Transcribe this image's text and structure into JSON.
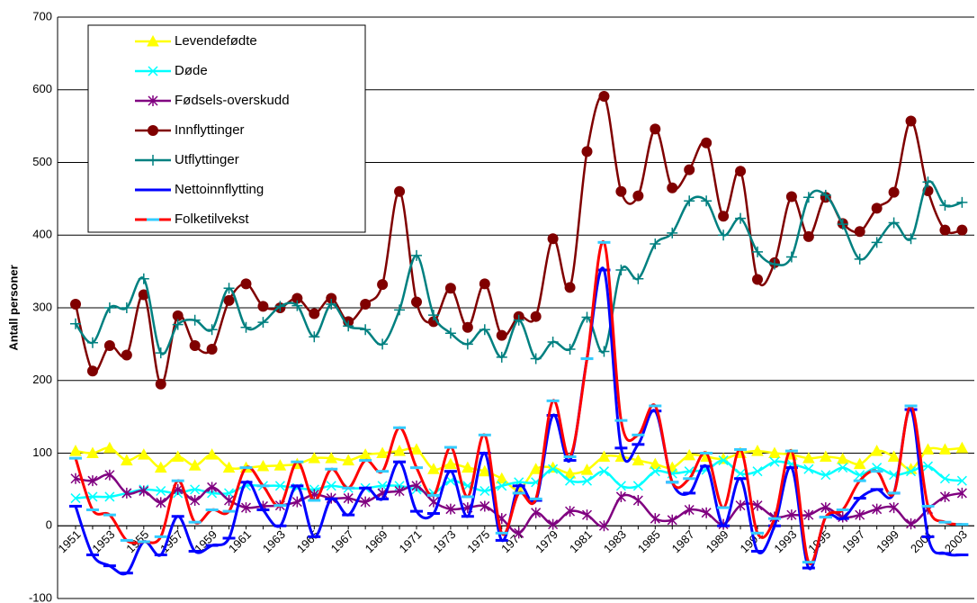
{
  "chart_data": {
    "type": "line",
    "y_label": "Antall personer",
    "categories": [
      "1951",
      null,
      "1953",
      null,
      "1955",
      null,
      "1957",
      null,
      "1959",
      null,
      "1961",
      null,
      "1963",
      null,
      "1965",
      null,
      "1967",
      null,
      "1969",
      null,
      "1971",
      null,
      "1973",
      null,
      "1975",
      null,
      "1977",
      null,
      "1979",
      null,
      "1981",
      null,
      "1983",
      null,
      "1985",
      null,
      "1987",
      null,
      "1989",
      null,
      "1991",
      null,
      "1993",
      null,
      "1995",
      null,
      "1997",
      null,
      "1999",
      null,
      "2001",
      null,
      "2003"
    ],
    "ylim": [
      -100,
      700
    ],
    "yticks": [
      -100,
      0,
      100,
      200,
      300,
      400,
      500,
      600,
      700
    ],
    "grid": true,
    "legend": "upper left",
    "series": [
      {
        "name": "Levendefødte",
        "color": "#ffff00",
        "marker": "triangle",
        "marker_color": "#ffff00",
        "values": [
          103,
          100,
          107,
          90,
          98,
          80,
          95,
          83,
          98,
          80,
          80,
          82,
          83,
          85,
          93,
          93,
          90,
          98,
          100,
          103,
          105,
          78,
          85,
          80,
          75,
          65,
          50,
          78,
          80,
          72,
          77,
          95,
          95,
          90,
          85,
          80,
          97,
          95,
          92,
          100,
          103,
          100,
          98,
          93,
          95,
          92,
          85,
          103,
          95,
          78,
          105,
          105,
          107
        ]
      },
      {
        "name": "Døde",
        "color": "#00ffff",
        "marker": "x",
        "marker_color": "#00ffff",
        "values": [
          38,
          40,
          40,
          45,
          50,
          48,
          45,
          50,
          45,
          45,
          55,
          55,
          55,
          52,
          50,
          55,
          52,
          52,
          55,
          55,
          50,
          45,
          62,
          55,
          48,
          55,
          60,
          60,
          78,
          62,
          62,
          75,
          55,
          55,
          75,
          72,
          75,
          77,
          90,
          72,
          75,
          88,
          85,
          78,
          70,
          80,
          70,
          80,
          70,
          75,
          82,
          65,
          62
        ]
      },
      {
        "name": "Fødsels-overskudd",
        "color": "#800080",
        "marker": "star",
        "marker_color": "#800080",
        "values": [
          65,
          62,
          70,
          45,
          48,
          32,
          50,
          35,
          53,
          35,
          25,
          27,
          28,
          33,
          43,
          38,
          38,
          33,
          45,
          48,
          55,
          33,
          23,
          25,
          27,
          10,
          -10,
          18,
          2,
          20,
          15,
          0,
          40,
          35,
          10,
          8,
          22,
          18,
          2,
          28,
          28,
          12,
          15,
          15,
          25,
          12,
          15,
          23,
          25,
          3,
          23,
          40,
          45
        ]
      },
      {
        "name": "Innflyttinger",
        "color": "#800000",
        "marker": "circle",
        "marker_color": "#800000",
        "values": [
          305,
          213,
          248,
          235,
          318,
          195,
          289,
          248,
          243,
          310,
          333,
          302,
          300,
          313,
          292,
          313,
          281,
          305,
          332,
          460,
          308,
          281,
          327,
          273,
          333,
          262,
          288,
          288,
          395,
          328,
          515,
          591,
          460,
          454,
          546,
          465,
          490,
          527,
          426,
          488,
          339,
          362,
          453,
          398,
          452,
          416,
          405,
          437,
          459,
          557,
          461,
          407,
          407
        ]
      },
      {
        "name": "Utflyttinger",
        "color": "#008080",
        "marker": "plus",
        "marker_color": "#008080",
        "values": [
          278,
          252,
          300,
          300,
          340,
          238,
          277,
          283,
          270,
          327,
          273,
          280,
          302,
          303,
          260,
          305,
          275,
          270,
          250,
          297,
          372,
          290,
          265,
          250,
          270,
          232,
          283,
          230,
          253,
          243,
          287,
          240,
          352,
          340,
          388,
          403,
          447,
          447,
          400,
          423,
          377,
          360,
          370,
          452,
          455,
          415,
          367,
          390,
          417,
          395,
          473,
          441,
          445
        ]
      },
      {
        "name": "Nettoinnflytting",
        "color": "#0000ff",
        "marker": "dash",
        "marker_color": "#0000ff",
        "values": [
          27,
          -40,
          -55,
          -65,
          -22,
          -40,
          13,
          -35,
          -27,
          -17,
          60,
          22,
          0,
          55,
          -15,
          37,
          15,
          52,
          37,
          88,
          20,
          17,
          75,
          13,
          100,
          -20,
          55,
          35,
          152,
          90,
          230,
          352,
          107,
          112,
          158,
          60,
          45,
          82,
          0,
          65,
          -35,
          0,
          80,
          -58,
          12,
          10,
          38,
          50,
          45,
          160,
          -15,
          -38,
          -40
        ]
      },
      {
        "name": "Folketilvekst",
        "color": "#ff0000",
        "marker": "dash",
        "marker_color": "#33ccff",
        "values": [
          93,
          22,
          15,
          -20,
          -22,
          -15,
          62,
          5,
          22,
          20,
          80,
          55,
          28,
          88,
          35,
          78,
          52,
          90,
          75,
          135,
          80,
          42,
          108,
          40,
          125,
          -10,
          45,
          37,
          172,
          95,
          230,
          390,
          145,
          125,
          165,
          60,
          65,
          100,
          25,
          105,
          -10,
          10,
          103,
          -50,
          12,
          22,
          62,
          75,
          45,
          165,
          27,
          5,
          2
        ]
      }
    ]
  }
}
